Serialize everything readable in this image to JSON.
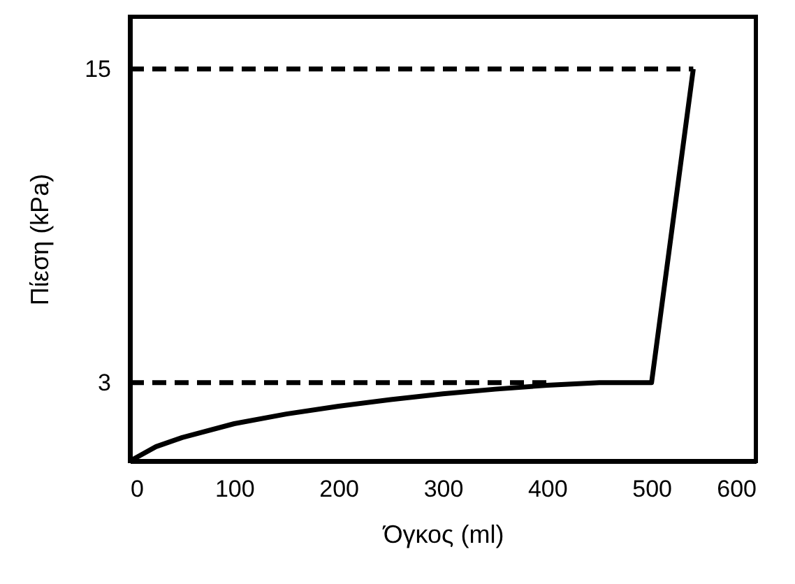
{
  "chart_data": {
    "type": "line",
    "xlabel": "Όγκος (ml)",
    "ylabel": "Πίεση (kPa)",
    "xlim": [
      0,
      600
    ],
    "xticks": [
      0,
      100,
      200,
      300,
      400,
      500,
      600
    ],
    "ylim": [
      0,
      17
    ],
    "yticks": [
      3,
      15
    ],
    "grid": false,
    "series": [
      {
        "color": "#000000",
        "line_style": "solid",
        "x": [
          0,
          25,
          50,
          100,
          150,
          200,
          250,
          300,
          350,
          400,
          450,
          500,
          520,
          540
        ],
        "values": [
          0,
          0.55,
          0.9,
          1.43,
          1.8,
          2.1,
          2.35,
          2.57,
          2.75,
          2.9,
          3,
          3,
          9,
          15
        ]
      },
      {
        "color": "#000000",
        "line_style": "dashed",
        "x": [
          0,
          540
        ],
        "values": [
          15,
          15
        ]
      },
      {
        "color": "#000000",
        "line_style": "dashed",
        "x": [
          0,
          400
        ],
        "values": [
          3,
          3
        ]
      }
    ]
  }
}
